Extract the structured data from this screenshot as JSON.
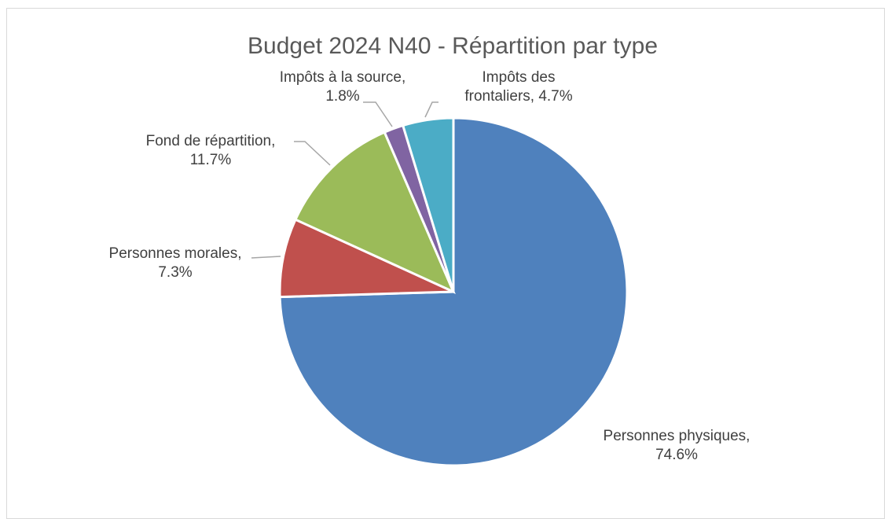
{
  "chart_data": {
    "type": "pie",
    "title": "Budget 2024 N40 - Répartition par type",
    "slices": [
      {
        "label": "Personnes physiques",
        "value": 74.6,
        "value_label": "74.6%",
        "color": "#4F81BD"
      },
      {
        "label": "Personnes morales",
        "value": 7.3,
        "value_label": "7.3%",
        "color": "#C0504D"
      },
      {
        "label": "Fond de répartition",
        "value": 11.7,
        "value_label": "11.7%",
        "color": "#9BBB59"
      },
      {
        "label": "Impôts à la source",
        "value": 1.8,
        "value_label": "1.8%",
        "color": "#8064A2"
      },
      {
        "label": "Impôts des frontaliers",
        "value": 4.7,
        "value_label": "4.7%",
        "color": "#4BACC6"
      }
    ],
    "data_labels": [
      {
        "lines": [
          "Personnes physiques,",
          "74.6%"
        ]
      },
      {
        "lines": [
          "Personnes morales,",
          "7.3%"
        ]
      },
      {
        "lines": [
          "Fond de répartition,",
          "11.7%"
        ]
      },
      {
        "lines": [
          "Impôts à la source,",
          "1.8%"
        ]
      },
      {
        "lines": [
          "Impôts des",
          "frontaliers, 4.7%"
        ]
      }
    ],
    "legend": "none"
  }
}
